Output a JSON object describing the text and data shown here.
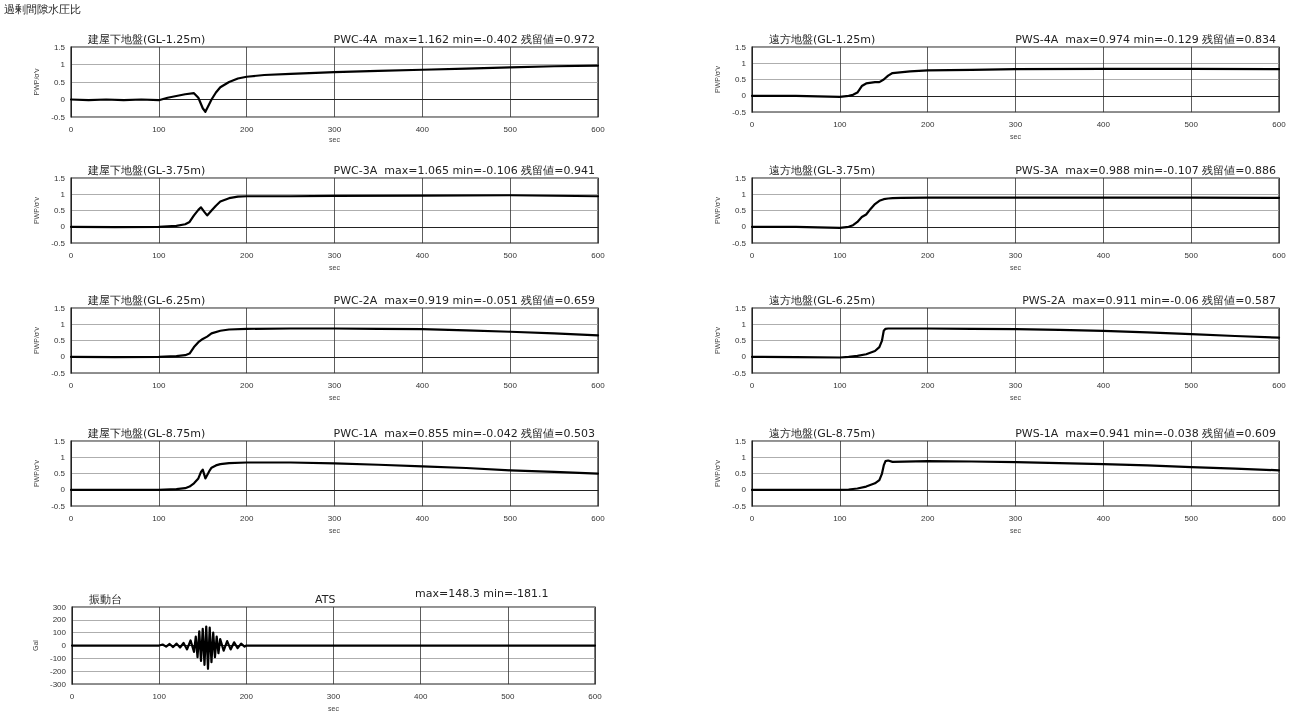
{
  "chart_data": [
    {
      "type": "line",
      "title": "建屋下地盤(GL-1.25m)",
      "subtitle": "PWC-4A  max=1.162 min=-0.402 残留値=0.972",
      "annotations": [
        "過剰間隙水圧比"
      ],
      "xlabel": "sec",
      "ylabel": "PWP/σ'v",
      "xlim": [
        0,
        600
      ],
      "xticks": [
        0,
        100,
        200,
        300,
        400,
        500,
        600
      ],
      "ylim": [
        -0.5,
        1.5
      ],
      "yticks": [
        -0.5,
        0,
        0.5,
        1,
        1.5
      ],
      "grid": true,
      "marker": "none",
      "line_style": "solid",
      "series": [
        {
          "color": "#000000",
          "x": [
            0,
            20,
            40,
            60,
            80,
            100,
            110,
            120,
            130,
            140,
            145,
            150,
            153,
            156,
            160,
            165,
            170,
            180,
            190,
            200,
            220,
            250,
            300,
            350,
            400,
            450,
            500,
            550,
            600
          ],
          "values": [
            0,
            -0.02,
            0,
            -0.02,
            0,
            -0.02,
            0.05,
            0.1,
            0.15,
            0.18,
            0.05,
            -0.25,
            -0.35,
            -0.2,
            0,
            0.2,
            0.35,
            0.5,
            0.6,
            0.65,
            0.7,
            0.73,
            0.78,
            0.82,
            0.85,
            0.88,
            0.92,
            0.95,
            0.97
          ]
        }
      ]
    },
    {
      "type": "line",
      "title": "遠方地盤(GL-1.25m)",
      "subtitle": "PWS-4A  max=0.974 min=-0.129 残留値=0.834",
      "xlabel": "sec",
      "ylabel": "PWP/σ'v",
      "xlim": [
        0,
        600
      ],
      "xticks": [
        0,
        100,
        200,
        300,
        400,
        500,
        600
      ],
      "ylim": [
        -0.5,
        1.5
      ],
      "yticks": [
        -0.5,
        0,
        0.5,
        1,
        1.5
      ],
      "grid": true,
      "marker": "none",
      "line_style": "solid",
      "series": [
        {
          "color": "#000000",
          "x": [
            0,
            50,
            100,
            110,
            115,
            120,
            125,
            130,
            140,
            145,
            150,
            155,
            160,
            180,
            200,
            250,
            300,
            400,
            500,
            600
          ],
          "values": [
            0,
            0,
            -0.03,
            0,
            0.03,
            0.1,
            0.3,
            0.38,
            0.42,
            0.42,
            0.5,
            0.62,
            0.7,
            0.75,
            0.78,
            0.8,
            0.82,
            0.83,
            0.83,
            0.82
          ]
        }
      ]
    },
    {
      "type": "line",
      "title": "建屋下地盤(GL-3.75m)",
      "subtitle": "PWC-3A  max=1.065 min=-0.106 残留値=0.941",
      "xlabel": "sec",
      "ylabel": "PWP/σ'v",
      "xlim": [
        0,
        600
      ],
      "xticks": [
        0,
        100,
        200,
        300,
        400,
        500,
        600
      ],
      "ylim": [
        -0.5,
        1.5
      ],
      "yticks": [
        -0.5,
        0,
        0.5,
        1,
        1.5
      ],
      "grid": true,
      "marker": "none",
      "line_style": "solid",
      "series": [
        {
          "color": "#000000",
          "x": [
            0,
            50,
            100,
            120,
            130,
            135,
            140,
            145,
            148,
            152,
            155,
            160,
            165,
            170,
            180,
            190,
            200,
            250,
            300,
            400,
            500,
            600
          ],
          "values": [
            0,
            -0.01,
            0,
            0.03,
            0.08,
            0.15,
            0.35,
            0.52,
            0.6,
            0.45,
            0.35,
            0.5,
            0.65,
            0.78,
            0.88,
            0.93,
            0.94,
            0.94,
            0.95,
            0.96,
            0.97,
            0.94
          ]
        }
      ]
    },
    {
      "type": "line",
      "title": "遠方地盤(GL-3.75m)",
      "subtitle": "PWS-3A  max=0.988 min=-0.107 残留値=0.886",
      "xlabel": "sec",
      "ylabel": "PWP/σ'v",
      "xlim": [
        0,
        600
      ],
      "xticks": [
        0,
        100,
        200,
        300,
        400,
        500,
        600
      ],
      "ylim": [
        -0.5,
        1.5
      ],
      "yticks": [
        -0.5,
        0,
        0.5,
        1,
        1.5
      ],
      "grid": true,
      "marker": "none",
      "line_style": "solid",
      "series": [
        {
          "color": "#000000",
          "x": [
            0,
            50,
            100,
            110,
            115,
            120,
            125,
            130,
            135,
            140,
            145,
            150,
            155,
            160,
            170,
            200,
            300,
            400,
            500,
            600
          ],
          "values": [
            0,
            0,
            -0.03,
            0,
            0.05,
            0.15,
            0.3,
            0.38,
            0.55,
            0.7,
            0.8,
            0.85,
            0.87,
            0.88,
            0.89,
            0.9,
            0.9,
            0.9,
            0.9,
            0.89
          ]
        }
      ]
    },
    {
      "type": "line",
      "title": "建屋下地盤(GL-6.25m)",
      "subtitle": "PWC-2A  max=0.919 min=-0.051 残留値=0.659",
      "xlabel": "sec",
      "ylabel": "PWP/σ'v",
      "xlim": [
        0,
        600
      ],
      "xticks": [
        0,
        100,
        200,
        300,
        400,
        500,
        600
      ],
      "ylim": [
        -0.5,
        1.5
      ],
      "yticks": [
        -0.5,
        0,
        0.5,
        1,
        1.5
      ],
      "grid": true,
      "marker": "none",
      "line_style": "solid",
      "series": [
        {
          "color": "#000000",
          "x": [
            0,
            50,
            100,
            120,
            130,
            135,
            140,
            145,
            150,
            155,
            160,
            170,
            180,
            200,
            250,
            300,
            350,
            400,
            450,
            500,
            550,
            600
          ],
          "values": [
            0,
            -0.01,
            0,
            0.02,
            0.05,
            0.1,
            0.3,
            0.45,
            0.55,
            0.62,
            0.72,
            0.8,
            0.84,
            0.86,
            0.87,
            0.87,
            0.86,
            0.85,
            0.81,
            0.77,
            0.72,
            0.66
          ]
        }
      ]
    },
    {
      "type": "line",
      "title": "遠方地盤(GL-6.25m)",
      "subtitle": "PWS-2A  max=0.911 min=-0.06 残留値=0.587",
      "xlabel": "sec",
      "ylabel": "PWP/σ'v",
      "xlim": [
        0,
        600
      ],
      "xticks": [
        0,
        100,
        200,
        300,
        400,
        500,
        600
      ],
      "ylim": [
        -0.5,
        1.5
      ],
      "yticks": [
        -0.5,
        0,
        0.5,
        1,
        1.5
      ],
      "grid": true,
      "marker": "none",
      "line_style": "solid",
      "series": [
        {
          "color": "#000000",
          "x": [
            0,
            50,
            100,
            110,
            120,
            130,
            140,
            145,
            148,
            150,
            152,
            155,
            200,
            250,
            300,
            350,
            400,
            450,
            500,
            550,
            600
          ],
          "values": [
            0,
            -0.01,
            -0.02,
            0,
            0.03,
            0.08,
            0.18,
            0.3,
            0.5,
            0.8,
            0.86,
            0.87,
            0.87,
            0.86,
            0.85,
            0.83,
            0.8,
            0.75,
            0.7,
            0.64,
            0.59
          ]
        }
      ]
    },
    {
      "type": "line",
      "title": "建屋下地盤(GL-8.75m)",
      "subtitle": "PWC-1A  max=0.855 min=-0.042 残留値=0.503",
      "xlabel": "sec",
      "ylabel": "PWP/σ'v",
      "xlim": [
        0,
        600
      ],
      "xticks": [
        0,
        100,
        200,
        300,
        400,
        500,
        600
      ],
      "ylim": [
        -0.5,
        1.5
      ],
      "yticks": [
        -0.5,
        0,
        0.5,
        1,
        1.5
      ],
      "grid": true,
      "marker": "none",
      "line_style": "solid",
      "series": [
        {
          "color": "#000000",
          "x": [
            0,
            50,
            100,
            120,
            130,
            135,
            140,
            145,
            148,
            150,
            153,
            155,
            158,
            160,
            165,
            170,
            180,
            200,
            250,
            300,
            350,
            400,
            450,
            500,
            550,
            600
          ],
          "values": [
            0,
            0,
            0,
            0.02,
            0.05,
            0.1,
            0.2,
            0.35,
            0.55,
            0.62,
            0.35,
            0.45,
            0.6,
            0.68,
            0.75,
            0.79,
            0.82,
            0.84,
            0.84,
            0.81,
            0.77,
            0.72,
            0.67,
            0.6,
            0.55,
            0.5
          ]
        }
      ]
    },
    {
      "type": "line",
      "title": "遠方地盤(GL-8.75m)",
      "subtitle": "PWS-1A  max=0.941 min=-0.038 残留値=0.609",
      "xlabel": "sec",
      "ylabel": "PWP/σ'v",
      "xlim": [
        0,
        600
      ],
      "xticks": [
        0,
        100,
        200,
        300,
        400,
        500,
        600
      ],
      "ylim": [
        -0.5,
        1.5
      ],
      "yticks": [
        -0.5,
        0,
        0.5,
        1,
        1.5
      ],
      "grid": true,
      "marker": "none",
      "line_style": "solid",
      "series": [
        {
          "color": "#000000",
          "x": [
            0,
            50,
            100,
            110,
            120,
            130,
            140,
            145,
            148,
            150,
            152,
            155,
            160,
            200,
            250,
            300,
            350,
            400,
            450,
            500,
            550,
            600
          ],
          "values": [
            0,
            0,
            0,
            0.01,
            0.04,
            0.1,
            0.2,
            0.3,
            0.5,
            0.75,
            0.88,
            0.9,
            0.86,
            0.88,
            0.87,
            0.85,
            0.82,
            0.79,
            0.75,
            0.7,
            0.65,
            0.6
          ]
        }
      ]
    },
    {
      "type": "line",
      "title": "振動台",
      "subtitle": "ATS",
      "annotations": [
        "max=148.3 min=-181.1"
      ],
      "xlabel": "sec",
      "ylabel": "Gal",
      "xlim": [
        0,
        600
      ],
      "xticks": [
        0,
        100,
        200,
        300,
        400,
        500,
        600
      ],
      "ylim": [
        -300,
        300
      ],
      "yticks": [
        -300,
        -200,
        -100,
        0,
        100,
        200,
        300
      ],
      "grid": true,
      "marker": "none",
      "line_style": "solid",
      "series": [
        {
          "color": "#000000",
          "x": [
            0,
            100,
            104,
            108,
            112,
            116,
            120,
            124,
            128,
            132,
            136,
            140,
            142,
            144,
            146,
            148,
            150,
            152,
            154,
            156,
            158,
            160,
            162,
            164,
            166,
            168,
            170,
            174,
            178,
            182,
            186,
            190,
            194,
            198,
            200,
            300,
            400,
            500,
            600
          ],
          "values": [
            0,
            0,
            8,
            -8,
            12,
            -12,
            15,
            -15,
            20,
            -30,
            40,
            -50,
            70,
            -90,
            110,
            -120,
            130,
            -150,
            148.3,
            -181.1,
            140,
            -130,
            100,
            -90,
            70,
            -60,
            50,
            -40,
            35,
            -30,
            25,
            -20,
            15,
            -8,
            0,
            0,
            0,
            0,
            0
          ]
        }
      ]
    }
  ]
}
